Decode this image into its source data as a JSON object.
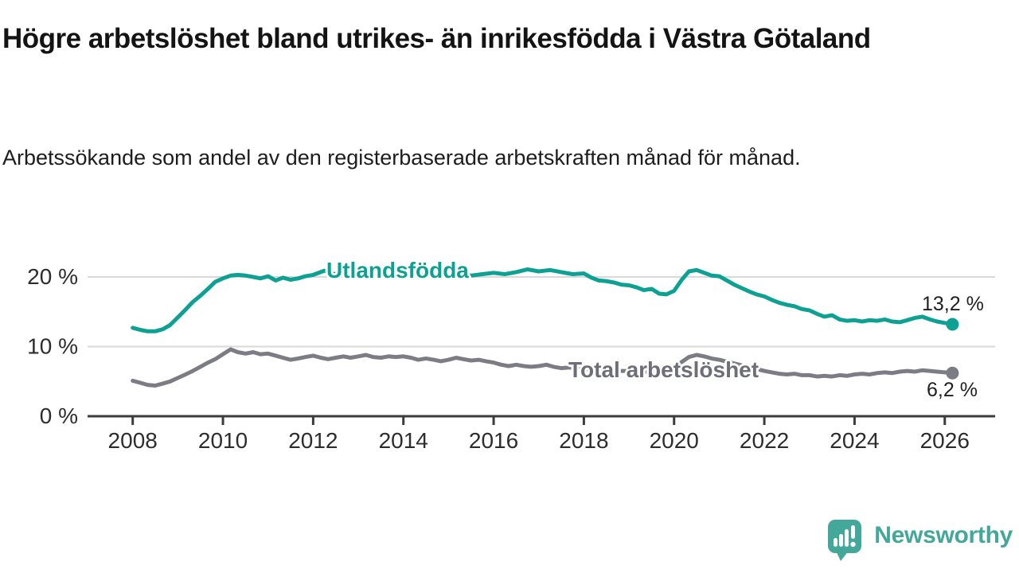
{
  "header": {
    "title": "Högre arbetslöshet bland utrikes- än inrikesfödda i Västra Götaland",
    "subtitle": "Arbetssökande som andel av den registerbaserade arbetskraften månad för månad."
  },
  "chart_data": {
    "type": "line",
    "title": "Högre arbetslöshet bland utrikes- än inrikesfödda i Västra Götaland",
    "subtitle": "Arbetssökande som andel av den registerbaserade arbetskraften månad för månad.",
    "unit": "%",
    "grid": "horizontal-only",
    "legend_position": "inline-on-line",
    "xlim": [
      2007,
      2027.1
    ],
    "ylim": [
      0,
      23
    ],
    "yticks": [
      {
        "value": 0,
        "label": "0 %"
      },
      {
        "value": 10,
        "label": "10 %"
      },
      {
        "value": 20,
        "label": "20 %"
      }
    ],
    "xticks": [
      2008,
      2010,
      2012,
      2014,
      2016,
      2018,
      2020,
      2022,
      2024,
      2026
    ],
    "axis_color": "#3c3c3c",
    "grid_color": "#d9d9d9",
    "tick_label_color": "#2d2d2d",
    "series": [
      {
        "name": "Utlandsfödda",
        "color": "#0da194",
        "label_color": "#0da194",
        "end_label": "13,2 %",
        "end_value": 13.2,
        "points": [
          [
            2008.0,
            12.7
          ],
          [
            2008.17,
            12.4
          ],
          [
            2008.33,
            12.2
          ],
          [
            2008.5,
            12.2
          ],
          [
            2008.67,
            12.5
          ],
          [
            2008.83,
            13.1
          ],
          [
            2009.0,
            14.2
          ],
          [
            2009.17,
            15.3
          ],
          [
            2009.33,
            16.4
          ],
          [
            2009.5,
            17.3
          ],
          [
            2009.67,
            18.3
          ],
          [
            2009.83,
            19.3
          ],
          [
            2010.0,
            19.8
          ],
          [
            2010.17,
            20.2
          ],
          [
            2010.33,
            20.3
          ],
          [
            2010.5,
            20.2
          ],
          [
            2010.67,
            20.0
          ],
          [
            2010.83,
            19.8
          ],
          [
            2011.0,
            20.1
          ],
          [
            2011.17,
            19.5
          ],
          [
            2011.33,
            19.9
          ],
          [
            2011.5,
            19.6
          ],
          [
            2011.67,
            19.8
          ],
          [
            2011.83,
            20.1
          ],
          [
            2012.0,
            20.3
          ],
          [
            2012.25,
            20.9
          ],
          [
            2012.42,
            20.5
          ],
          [
            2012.58,
            20.3
          ],
          [
            2012.75,
            20.5
          ],
          [
            2013.0,
            20.3
          ],
          [
            2013.25,
            20.4
          ],
          [
            2013.5,
            20.2
          ],
          [
            2013.75,
            20.4
          ],
          [
            2014.0,
            20.3
          ],
          [
            2014.25,
            20.2
          ],
          [
            2014.5,
            20.4
          ],
          [
            2014.75,
            20.2
          ],
          [
            2015.0,
            20.5
          ],
          [
            2015.25,
            20.3
          ],
          [
            2015.5,
            20.2
          ],
          [
            2015.75,
            20.4
          ],
          [
            2016.0,
            20.6
          ],
          [
            2016.25,
            20.4
          ],
          [
            2016.5,
            20.7
          ],
          [
            2016.75,
            21.1
          ],
          [
            2017.0,
            20.8
          ],
          [
            2017.25,
            21.0
          ],
          [
            2017.5,
            20.7
          ],
          [
            2017.75,
            20.4
          ],
          [
            2018.0,
            20.5
          ],
          [
            2018.17,
            19.9
          ],
          [
            2018.33,
            19.5
          ],
          [
            2018.5,
            19.4
          ],
          [
            2018.67,
            19.2
          ],
          [
            2018.83,
            18.9
          ],
          [
            2019.0,
            18.8
          ],
          [
            2019.17,
            18.5
          ],
          [
            2019.33,
            18.1
          ],
          [
            2019.5,
            18.3
          ],
          [
            2019.67,
            17.6
          ],
          [
            2019.83,
            17.5
          ],
          [
            2020.0,
            18.0
          ],
          [
            2020.17,
            19.6
          ],
          [
            2020.33,
            20.8
          ],
          [
            2020.5,
            21.0
          ],
          [
            2020.67,
            20.6
          ],
          [
            2020.83,
            20.2
          ],
          [
            2021.0,
            20.1
          ],
          [
            2021.17,
            19.5
          ],
          [
            2021.33,
            18.9
          ],
          [
            2021.5,
            18.4
          ],
          [
            2021.67,
            17.9
          ],
          [
            2021.83,
            17.5
          ],
          [
            2022.0,
            17.2
          ],
          [
            2022.17,
            16.7
          ],
          [
            2022.33,
            16.3
          ],
          [
            2022.5,
            16.0
          ],
          [
            2022.67,
            15.8
          ],
          [
            2022.83,
            15.4
          ],
          [
            2023.0,
            15.2
          ],
          [
            2023.17,
            14.7
          ],
          [
            2023.33,
            14.3
          ],
          [
            2023.5,
            14.5
          ],
          [
            2023.67,
            13.9
          ],
          [
            2023.83,
            13.7
          ],
          [
            2024.0,
            13.8
          ],
          [
            2024.17,
            13.6
          ],
          [
            2024.33,
            13.8
          ],
          [
            2024.5,
            13.7
          ],
          [
            2024.67,
            13.9
          ],
          [
            2024.83,
            13.6
          ],
          [
            2025.0,
            13.5
          ],
          [
            2025.17,
            13.8
          ],
          [
            2025.33,
            14.1
          ],
          [
            2025.5,
            14.3
          ],
          [
            2025.67,
            13.9
          ],
          [
            2025.83,
            13.6
          ],
          [
            2026.0,
            13.4
          ],
          [
            2026.17,
            13.2
          ]
        ]
      },
      {
        "name": "Total arbetslöshet",
        "color": "#7c7c84",
        "label_color": "#6e6e78",
        "end_label": "6,2 %",
        "end_value": 6.2,
        "points": [
          [
            2008.0,
            5.1
          ],
          [
            2008.17,
            4.8
          ],
          [
            2008.33,
            4.5
          ],
          [
            2008.5,
            4.4
          ],
          [
            2008.67,
            4.7
          ],
          [
            2008.83,
            5.0
          ],
          [
            2009.0,
            5.5
          ],
          [
            2009.17,
            6.0
          ],
          [
            2009.33,
            6.5
          ],
          [
            2009.5,
            7.1
          ],
          [
            2009.67,
            7.7
          ],
          [
            2009.83,
            8.2
          ],
          [
            2010.0,
            8.9
          ],
          [
            2010.17,
            9.6
          ],
          [
            2010.33,
            9.2
          ],
          [
            2010.5,
            9.0
          ],
          [
            2010.67,
            9.2
          ],
          [
            2010.83,
            8.9
          ],
          [
            2011.0,
            9.0
          ],
          [
            2011.17,
            8.7
          ],
          [
            2011.33,
            8.4
          ],
          [
            2011.5,
            8.1
          ],
          [
            2011.67,
            8.3
          ],
          [
            2011.83,
            8.5
          ],
          [
            2012.0,
            8.7
          ],
          [
            2012.17,
            8.4
          ],
          [
            2012.33,
            8.2
          ],
          [
            2012.5,
            8.4
          ],
          [
            2012.67,
            8.6
          ],
          [
            2012.83,
            8.4
          ],
          [
            2013.0,
            8.6
          ],
          [
            2013.17,
            8.8
          ],
          [
            2013.33,
            8.5
          ],
          [
            2013.5,
            8.4
          ],
          [
            2013.67,
            8.6
          ],
          [
            2013.83,
            8.5
          ],
          [
            2014.0,
            8.6
          ],
          [
            2014.17,
            8.4
          ],
          [
            2014.33,
            8.1
          ],
          [
            2014.5,
            8.3
          ],
          [
            2014.67,
            8.1
          ],
          [
            2014.83,
            7.9
          ],
          [
            2015.0,
            8.1
          ],
          [
            2015.17,
            8.4
          ],
          [
            2015.33,
            8.2
          ],
          [
            2015.5,
            8.0
          ],
          [
            2015.67,
            8.1
          ],
          [
            2015.83,
            7.9
          ],
          [
            2016.0,
            7.7
          ],
          [
            2016.17,
            7.4
          ],
          [
            2016.33,
            7.2
          ],
          [
            2016.5,
            7.4
          ],
          [
            2016.67,
            7.2
          ],
          [
            2016.83,
            7.1
          ],
          [
            2017.0,
            7.2
          ],
          [
            2017.17,
            7.4
          ],
          [
            2017.33,
            7.1
          ],
          [
            2017.5,
            6.9
          ],
          [
            2017.67,
            7.0
          ],
          [
            2017.83,
            6.9
          ],
          [
            2018.0,
            6.8
          ],
          [
            2018.25,
            6.7
          ],
          [
            2018.5,
            6.6
          ],
          [
            2018.75,
            6.5
          ],
          [
            2019.0,
            6.5
          ],
          [
            2019.25,
            6.4
          ],
          [
            2019.5,
            6.4
          ],
          [
            2019.75,
            6.6
          ],
          [
            2020.0,
            7.0
          ],
          [
            2020.17,
            7.8
          ],
          [
            2020.33,
            8.5
          ],
          [
            2020.5,
            8.8
          ],
          [
            2020.67,
            8.6
          ],
          [
            2020.83,
            8.3
          ],
          [
            2021.0,
            8.1
          ],
          [
            2021.25,
            7.7
          ],
          [
            2021.5,
            7.3
          ],
          [
            2021.75,
            6.9
          ],
          [
            2022.0,
            6.5
          ],
          [
            2022.17,
            6.3
          ],
          [
            2022.33,
            6.1
          ],
          [
            2022.5,
            6.0
          ],
          [
            2022.67,
            6.1
          ],
          [
            2022.83,
            5.9
          ],
          [
            2023.0,
            5.9
          ],
          [
            2023.17,
            5.7
          ],
          [
            2023.33,
            5.8
          ],
          [
            2023.5,
            5.7
          ],
          [
            2023.67,
            5.9
          ],
          [
            2023.83,
            5.8
          ],
          [
            2024.0,
            6.0
          ],
          [
            2024.17,
            6.1
          ],
          [
            2024.33,
            6.0
          ],
          [
            2024.5,
            6.2
          ],
          [
            2024.67,
            6.3
          ],
          [
            2024.83,
            6.2
          ],
          [
            2025.0,
            6.4
          ],
          [
            2025.17,
            6.5
          ],
          [
            2025.33,
            6.4
          ],
          [
            2025.5,
            6.6
          ],
          [
            2025.67,
            6.5
          ],
          [
            2025.83,
            6.4
          ],
          [
            2026.0,
            6.3
          ],
          [
            2026.17,
            6.2
          ]
        ]
      }
    ]
  },
  "branding": {
    "wordmark": "Newsworthy",
    "color": "#43a79a"
  }
}
